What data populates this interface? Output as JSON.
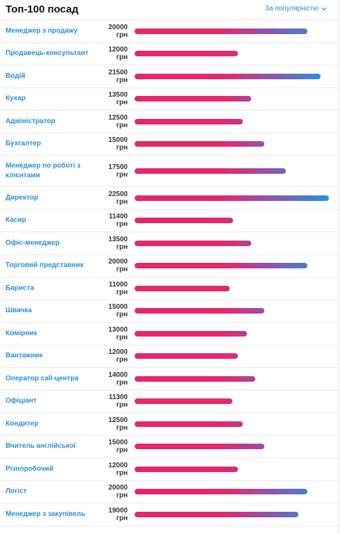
{
  "header": {
    "title": "Топ-100 посад",
    "sort_label": "За популярністю"
  },
  "salary_scale_max": 22500,
  "items": [
    {
      "name": "Менеджер з продажу",
      "salary": "20000 грн",
      "value": 20000
    },
    {
      "name": "Продавець-консультант",
      "salary": "12000 грн",
      "value": 12000
    },
    {
      "name": "Водій",
      "salary": "21500 грн",
      "value": 21500
    },
    {
      "name": "Кухар",
      "salary": "13500 грн",
      "value": 13500
    },
    {
      "name": "Адміністратор",
      "salary": "12500 грн",
      "value": 12500
    },
    {
      "name": "Бухгалтер",
      "salary": "15000 грн",
      "value": 15000
    },
    {
      "name": "Менеджер по роботі з клієнтами",
      "salary": "17500 грн",
      "value": 17500
    },
    {
      "name": "Директор",
      "salary": "22500 грн",
      "value": 22500
    },
    {
      "name": "Касир",
      "salary": "11400 грн",
      "value": 11400
    },
    {
      "name": "Офіс-менеджер",
      "salary": "13500 грн",
      "value": 13500
    },
    {
      "name": "Торговий представник",
      "salary": "20000 грн",
      "value": 20000
    },
    {
      "name": "Бариста",
      "salary": "11000 грн",
      "value": 11000
    },
    {
      "name": "Швачка",
      "salary": "15000 грн",
      "value": 15000
    },
    {
      "name": "Комірник",
      "salary": "13000 грн",
      "value": 13000
    },
    {
      "name": "Вантажник",
      "salary": "12000 грн",
      "value": 12000
    },
    {
      "name": "Оператор call-центра",
      "salary": "14000 грн",
      "value": 14000
    },
    {
      "name": "Офіціант",
      "salary": "11300 грн",
      "value": 11300
    },
    {
      "name": "Кондитер",
      "salary": "12500 грн",
      "value": 12500
    },
    {
      "name": "Вчитель англійської",
      "salary": "15000 грн",
      "value": 15000
    },
    {
      "name": "Різноробочий",
      "salary": "12000 грн",
      "value": 12000
    },
    {
      "name": "Логіст",
      "salary": "20000 грн",
      "value": 20000
    },
    {
      "name": "Менеджер з закупівель",
      "salary": "19000 грн",
      "value": 19000
    }
  ]
}
